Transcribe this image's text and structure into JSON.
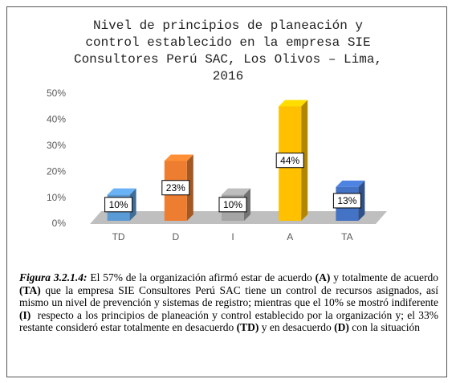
{
  "chart_data": {
    "type": "bar3d",
    "title": "Nivel de principios de planeación y control establecido en la empresa SIE Consultores Perú SAC, Los Olivos – Lima, 2016",
    "categories": [
      "TD",
      "D",
      "I",
      "A",
      "TA"
    ],
    "values": [
      10,
      23,
      10,
      44,
      13
    ],
    "value_labels": [
      "10%",
      "23%",
      "10%",
      "44%",
      "13%"
    ],
    "colors": [
      "#5b9bd5",
      "#ed7d31",
      "#a5a5a5",
      "#ffc000",
      "#4472c4"
    ],
    "ylim": [
      0,
      50
    ],
    "yticks": [
      {
        "value": 0,
        "label": "0%"
      },
      {
        "value": 10,
        "label": "10%"
      },
      {
        "value": 20,
        "label": "20%"
      },
      {
        "value": 30,
        "label": "30%"
      },
      {
        "value": 40,
        "label": "40%"
      },
      {
        "value": 50,
        "label": "50%"
      }
    ],
    "grid": false
  },
  "caption": {
    "segments": [
      {
        "text": "Figura 3.2.1.4:",
        "bold": true,
        "italic": true
      },
      {
        "text": " El 57% de la organización afirmó estar de acuerdo "
      },
      {
        "text": "(A)",
        "bold": true
      },
      {
        "text": " y totalmente de acuerdo "
      },
      {
        "text": "(TA)",
        "bold": true
      },
      {
        "text": " que la empresa SIE Consultores Perú SAC tiene un control de recursos asignados, así mismo un nivel de prevención y sistemas de registro; mientras que el 10% se mostró indiferente "
      },
      {
        "text": "(I)",
        "bold": true
      },
      {
        "text": "  respecto a los principios de planeación y control establecido por la organización y; el 33% restante consideró estar totalmente en desacuerdo "
      },
      {
        "text": "(TD)",
        "bold": true
      },
      {
        "text": " y en desacuerdo "
      },
      {
        "text": "(D)",
        "bold": true
      },
      {
        "text": " con la situación"
      }
    ]
  }
}
